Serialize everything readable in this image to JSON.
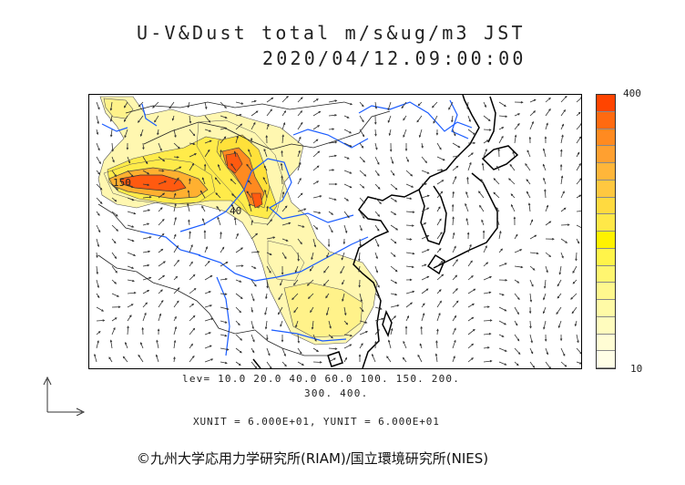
{
  "title": {
    "line1": "U-V&Dust total m/s&ug/m3 JST",
    "line2": "2020/04/12.09:00:00"
  },
  "colorbar": {
    "max_label": "400",
    "min_label": "10",
    "colors": [
      "#ff4400",
      "#ff6a10",
      "#ff8a20",
      "#ffa030",
      "#ffb63a",
      "#ffc840",
      "#ffda40",
      "#ffe848",
      "#fff200",
      "#fff44a",
      "#fff670",
      "#fff88e",
      "#fffaa6",
      "#fffcbe",
      "#fffdd4",
      "#fffee6"
    ]
  },
  "contour_labels": {
    "label_a": "150",
    "label_b": "40"
  },
  "levels": {
    "line1": "lev= 10.0 20.0 40.0 60.0 100. 150. 200.",
    "line2": "300. 400."
  },
  "unit_text": "XUNIT = 6.000E+01, YUNIT = 6.000E+01",
  "copyright": "©九州大学応用力学研究所(RIAM)/国立環境研究所(NIES)",
  "colors": {
    "coastline": "#000000",
    "rivers": "#1a5cff",
    "borders": "#222222",
    "wind_vectors": "#333333"
  }
}
